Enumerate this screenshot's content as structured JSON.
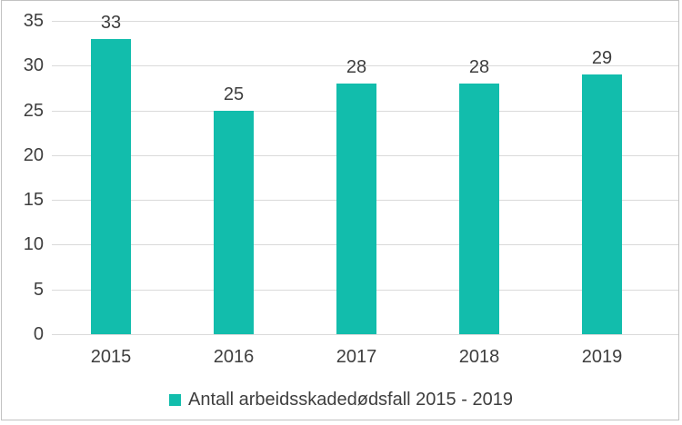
{
  "chart_data": {
    "type": "bar",
    "title": "",
    "xlabel": "",
    "ylabel": "",
    "categories": [
      "2015",
      "2016",
      "2017",
      "2018",
      "2019"
    ],
    "series": [
      {
        "name": "Antall arbeidsskadedødsfall 2015 - 2019",
        "values": [
          33,
          25,
          28,
          28,
          29
        ]
      }
    ],
    "ylim": [
      0,
      35
    ],
    "yticks": [
      0,
      5,
      10,
      15,
      20,
      25,
      30,
      35
    ],
    "grid": "horizontal",
    "data_labels_shown": true,
    "legend_position": "bottom"
  },
  "legend": {
    "items": [
      {
        "label": "Antall arbeidsskadedødsfall 2015 - 2019",
        "color": "#12bdac"
      }
    ]
  },
  "colors": {
    "bar": "#12bdac",
    "text": "#3e3e3e",
    "gridline": "#dadada",
    "frame_border": "#c2c2c2",
    "background": "#ffffff"
  }
}
